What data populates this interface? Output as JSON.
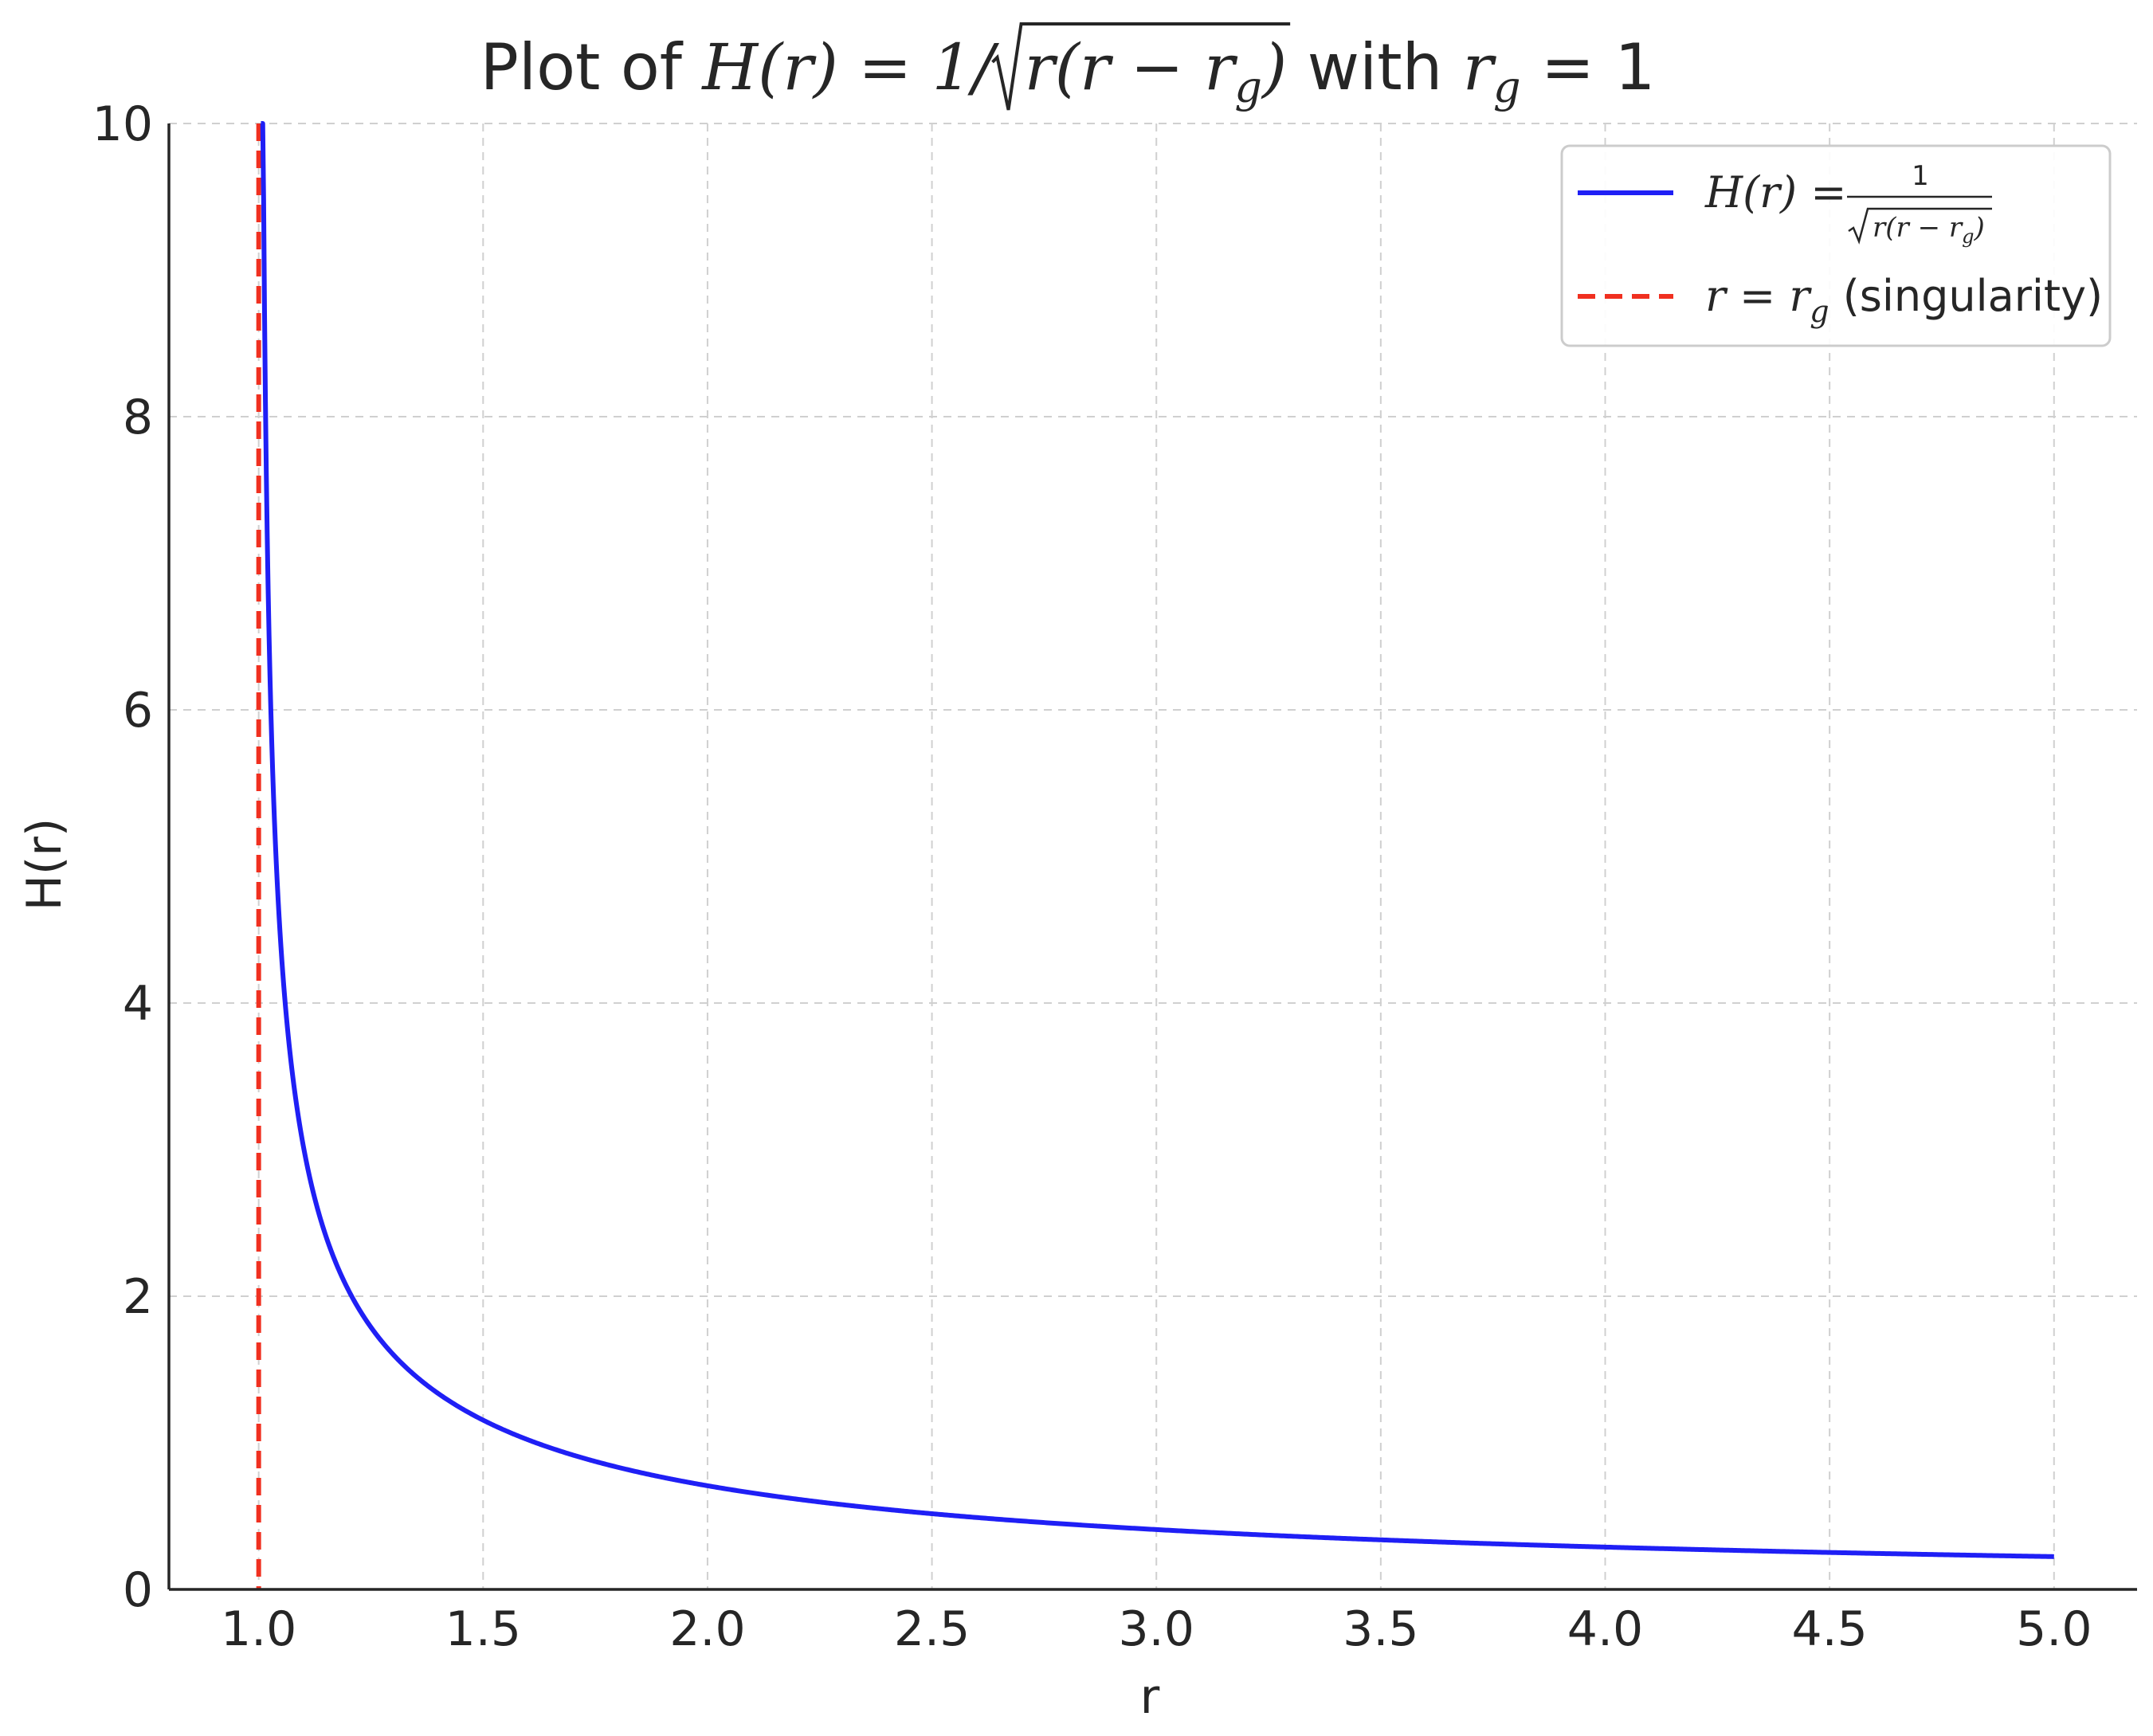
{
  "chart_data": {
    "type": "line",
    "title_parts": {
      "prefix": "Plot of ",
      "lhs": "H(r) = 1/",
      "radicand": "r(r − r",
      "radicand_sub": "g",
      "radicand_close": ")",
      "mid": " with ",
      "param": "r",
      "param_sub": "g",
      "param_value": " = 1"
    },
    "xlabel": "r",
    "ylabel": "H(r)",
    "xlim": [
      0.8,
      5.185
    ],
    "ylim": [
      0,
      10
    ],
    "xticks": [
      1.0,
      1.5,
      2.0,
      2.5,
      3.0,
      3.5,
      4.0,
      4.5,
      5.0
    ],
    "xtick_labels": [
      "1.0",
      "1.5",
      "2.0",
      "2.5",
      "3.0",
      "3.5",
      "4.0",
      "4.5",
      "5.0"
    ],
    "yticks": [
      0,
      2,
      4,
      6,
      8,
      10
    ],
    "ytick_labels": [
      "0",
      "2",
      "4",
      "6",
      "8",
      "10"
    ],
    "grid": true,
    "grid_style": "dashed",
    "legend_position": "top-right",
    "rg": 1,
    "series": [
      {
        "name": "H(r) = 1/√(r(r − r_g))",
        "legend_lhs": "H(r) = ",
        "legend_num": "1",
        "legend_den": "r(r − r",
        "legend_den_sub": "g",
        "legend_den_close": ")",
        "color": "#1f1ff5",
        "style": "solid",
        "function": "1/sqrt(r*(r-rg))",
        "r_range": [
          1.001,
          5.0
        ],
        "sample_points": [
          {
            "r": 1.01,
            "H": 9.95
          },
          {
            "r": 1.05,
            "H": 4.36
          },
          {
            "r": 1.1,
            "H": 3.02
          },
          {
            "r": 1.2,
            "H": 2.04
          },
          {
            "r": 1.5,
            "H": 1.15
          },
          {
            "r": 2.0,
            "H": 0.71
          },
          {
            "r": 2.5,
            "H": 0.52
          },
          {
            "r": 3.0,
            "H": 0.41
          },
          {
            "r": 3.5,
            "H": 0.34
          },
          {
            "r": 4.0,
            "H": 0.29
          },
          {
            "r": 4.5,
            "H": 0.25
          },
          {
            "r": 5.0,
            "H": 0.22
          }
        ]
      },
      {
        "name": "r = r_g (singularity)",
        "legend_lhs": "r = r",
        "legend_sub": "g",
        "legend_rest": " (singularity)",
        "color": "#f03020",
        "style": "dashed",
        "x": 1.0
      }
    ]
  }
}
